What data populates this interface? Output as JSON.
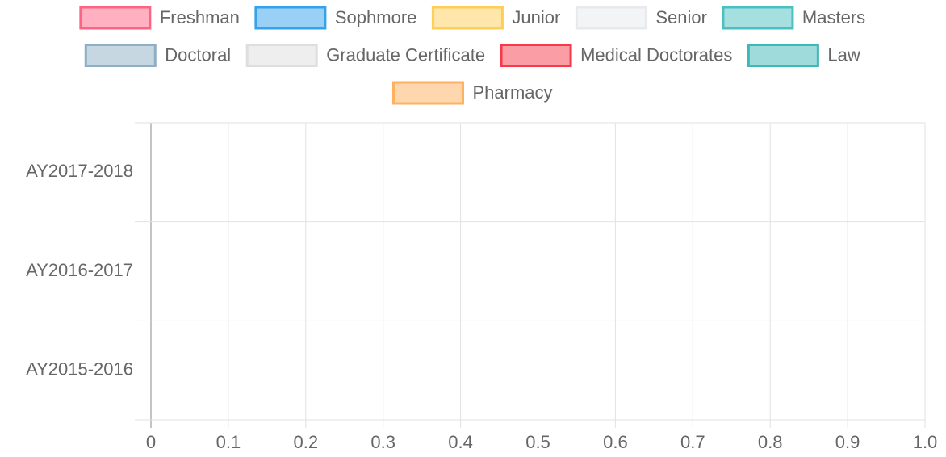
{
  "chart_data": {
    "type": "bar",
    "orientation": "horizontal",
    "stacked": true,
    "categories": [
      "AY2017-2018",
      "AY2016-2017",
      "AY2015-2016"
    ],
    "series": [
      {
        "name": "Freshman",
        "color": "#ff6384",
        "values": [
          0,
          0,
          0
        ]
      },
      {
        "name": "Sophmore",
        "color": "#36a2eb",
        "values": [
          0,
          0,
          0
        ]
      },
      {
        "name": "Junior",
        "color": "#ffce56",
        "values": [
          0,
          0,
          0
        ]
      },
      {
        "name": "Senior",
        "color": "#e7e9ed",
        "values": [
          0,
          0,
          0
        ]
      },
      {
        "name": "Masters",
        "color": "#4bc0c0",
        "values": [
          0,
          0,
          0
        ]
      },
      {
        "name": "Doctoral",
        "color": "#8eafc6",
        "values": [
          0,
          0,
          0
        ]
      },
      {
        "name": "Graduate Certificate",
        "color": "#dedede",
        "values": [
          0,
          0,
          0
        ]
      },
      {
        "name": "Medical Doctorates",
        "color": "#f53b4b",
        "values": [
          0,
          0,
          0
        ]
      },
      {
        "name": "Law",
        "color": "#3fb8b8",
        "values": [
          0,
          0,
          0
        ]
      },
      {
        "name": "Pharmacy",
        "color": "#ffb060",
        "values": [
          0,
          0,
          0
        ]
      }
    ],
    "xlim": [
      0,
      1
    ],
    "xticks": [
      0,
      0.1,
      0.2,
      0.3,
      0.4,
      0.5,
      0.6,
      0.7,
      0.8,
      0.9,
      {
        "value": 1,
        "label": "1.0"
      }
    ],
    "grid": true,
    "legend": "top"
  }
}
